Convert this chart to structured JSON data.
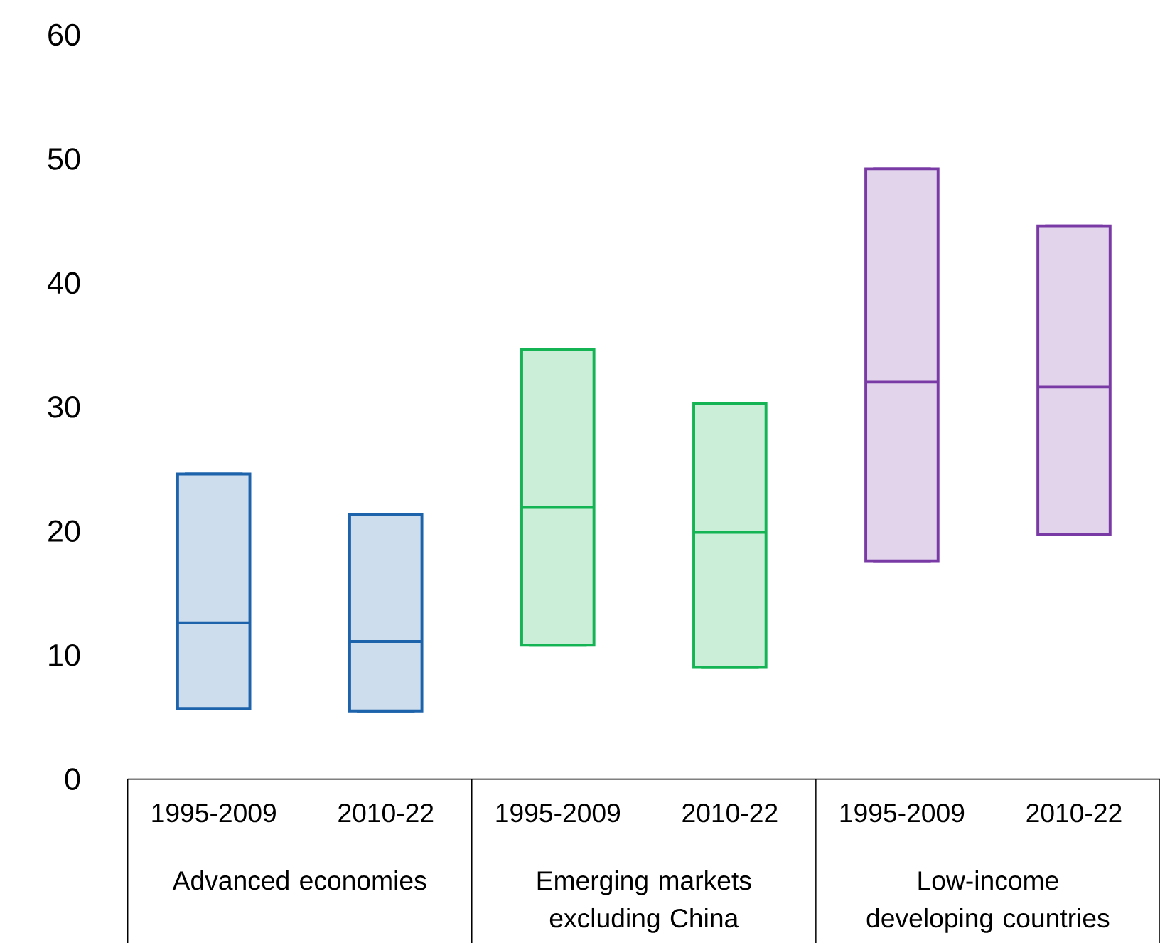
{
  "chart_data": {
    "type": "box",
    "categories": [
      "1995-2009",
      "2010-22",
      "1995-2009",
      "2010-22",
      "1995-2009",
      "2010-22"
    ],
    "boxes": [
      {
        "low": 5.7,
        "q1": 5.7,
        "median": 12.6,
        "q3": 24.6,
        "high": 24.6
      },
      {
        "low": 5.5,
        "q1": 5.5,
        "median": 11.1,
        "q3": 21.3,
        "high": 21.3
      },
      {
        "low": 10.8,
        "q1": 10.8,
        "median": 21.9,
        "q3": 34.6,
        "high": 34.6
      },
      {
        "low": 9.0,
        "q1": 9.0,
        "median": 19.9,
        "q3": 30.3,
        "high": 30.3
      },
      {
        "low": 17.6,
        "q1": 17.6,
        "median": 32.0,
        "q3": 49.2,
        "high": 49.2
      },
      {
        "low": 19.7,
        "q1": 19.7,
        "median": 31.6,
        "q3": 44.6,
        "high": 44.6
      }
    ],
    "colors": [
      "#1d63ab",
      "#1d63ab",
      "#14b454",
      "#14b454",
      "#7a3aa6",
      "#7a3aa6"
    ],
    "ylim": [
      0,
      60
    ],
    "yticks": [
      0,
      10,
      20,
      30,
      40,
      50,
      60
    ],
    "grid": false,
    "annotations": [
      "Advanced economies",
      "Emerging markets excluding China",
      "Low-income developing countries"
    ]
  }
}
